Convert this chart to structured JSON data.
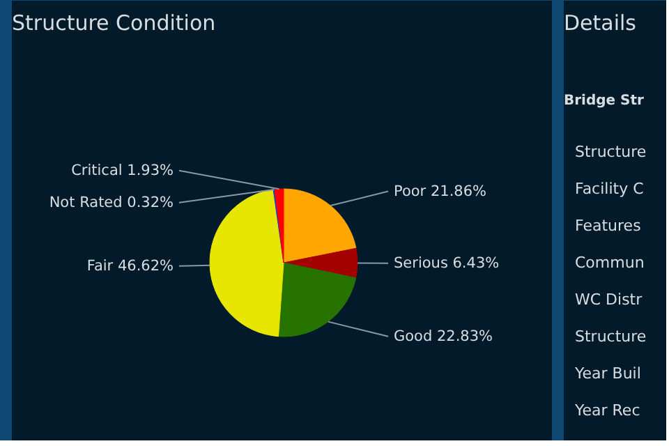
{
  "chart_data": [
    {
      "type": "pie",
      "title": "Structure Condition",
      "categories": [
        "Poor",
        "Serious",
        "Good",
        "Fair",
        "Not Rated",
        "Critical"
      ],
      "values": [
        21.86,
        6.43,
        22.83,
        46.62,
        0.32,
        1.93
      ],
      "colors": [
        "#ffa600",
        "#a30000",
        "#267300",
        "#e6e600",
        "#1f3fd0",
        "#ff0000"
      ],
      "value_labels": [
        "21.86%",
        "6.43%",
        "22.83%",
        "46.62%",
        "0.32%",
        "1.93%"
      ]
    },
    {
      "type": "other",
      "title": "Details",
      "annotations": [
        "Bridge Str",
        "Structure",
        "Facility C",
        "Features",
        "Commun",
        "WC Distr",
        "Structure",
        "Year Buil",
        "Year Rec"
      ]
    }
  ]
}
